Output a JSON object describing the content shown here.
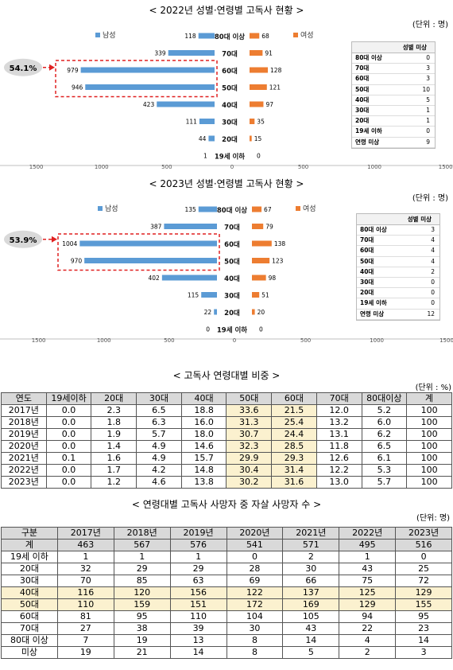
{
  "charts": [
    {
      "title": "< 2022년 성별·연령별 고독사 현황 >",
      "unit": "(단위 : 명)",
      "legend_male": "남성",
      "legend_female": "여성",
      "share_label": "54.1%",
      "missing_title": "성별 미상",
      "missing": [
        {
          "label": "80대 이상",
          "value": "0"
        },
        {
          "label": "70대",
          "value": "3"
        },
        {
          "label": "60대",
          "value": "3"
        },
        {
          "label": "50대",
          "value": "10"
        },
        {
          "label": "40대",
          "value": "5"
        },
        {
          "label": "30대",
          "value": "1"
        },
        {
          "label": "20대",
          "value": "1"
        },
        {
          "label": "19세 이하",
          "value": "0"
        },
        {
          "label": "연령 미상",
          "value": "9"
        }
      ]
    },
    {
      "title": "< 2023년 성별·연령별 고독사 현황 >",
      "unit": "(단위 : 명)",
      "legend_male": "남성",
      "legend_female": "여성",
      "share_label": "53.9%",
      "missing_title": "성별 미상",
      "missing": [
        {
          "label": "80대 이상",
          "value": "3"
        },
        {
          "label": "70대",
          "value": "4"
        },
        {
          "label": "60대",
          "value": "4"
        },
        {
          "label": "50대",
          "value": "4"
        },
        {
          "label": "40대",
          "value": "2"
        },
        {
          "label": "30대",
          "value": "0"
        },
        {
          "label": "20대",
          "value": "0"
        },
        {
          "label": "19세 이하",
          "value": "0"
        },
        {
          "label": "연령 미상",
          "value": "12"
        }
      ]
    }
  ],
  "chart_data": [
    {
      "type": "bar",
      "title": "< 2022년 성별·연령별 고독사 현황 >",
      "categories": [
        "80대 이상",
        "70대",
        "60대",
        "50대",
        "40대",
        "30대",
        "20대",
        "19세 이하"
      ],
      "series": [
        {
          "name": "남성",
          "values": [
            118,
            339,
            979,
            946,
            423,
            111,
            44,
            1
          ]
        },
        {
          "name": "여성",
          "values": [
            68,
            91,
            128,
            121,
            97,
            35,
            15,
            0
          ]
        }
      ],
      "xlim": [
        -1500,
        1500
      ],
      "x_ticks": [
        "1500",
        "1000",
        "500",
        "0",
        "500",
        "1000",
        "1500"
      ],
      "legend": "top",
      "colors": {
        "male": "#5b9bd5",
        "female": "#ed7d31",
        "highlight": "#e02020"
      }
    },
    {
      "type": "bar",
      "title": "< 2023년 성별·연령별 고독사 현황 >",
      "categories": [
        "80대 이상",
        "70대",
        "60대",
        "50대",
        "40대",
        "30대",
        "20대",
        "19세 이하"
      ],
      "series": [
        {
          "name": "남성",
          "values": [
            135,
            387,
            1004,
            970,
            402,
            115,
            22,
            0
          ]
        },
        {
          "name": "여성",
          "values": [
            67,
            79,
            138,
            123,
            98,
            51,
            20,
            0
          ]
        }
      ],
      "xlim": [
        -1500,
        1500
      ],
      "x_ticks": [
        "1500",
        "1000",
        "500",
        "0",
        "500",
        "1000",
        "1500"
      ],
      "legend": "top",
      "colors": {
        "male": "#5b9bd5",
        "female": "#ed7d31",
        "highlight": "#e02020"
      }
    },
    {
      "type": "table",
      "title": "< 고독사 연령대별 비중 >",
      "unit": "(단위 : %)",
      "headers": [
        "연도",
        "19세이하",
        "20대",
        "30대",
        "40대",
        "50대",
        "60대",
        "70대",
        "80대이상",
        "계"
      ],
      "rows": [
        [
          "2017년",
          "0.0",
          "2.3",
          "6.5",
          "18.8",
          "33.6",
          "21.5",
          "12.0",
          "5.2",
          "100"
        ],
        [
          "2018년",
          "0.0",
          "1.8",
          "6.3",
          "16.0",
          "31.3",
          "25.4",
          "13.2",
          "6.0",
          "100"
        ],
        [
          "2019년",
          "0.0",
          "1.9",
          "5.7",
          "18.0",
          "30.7",
          "24.4",
          "13.1",
          "6.2",
          "100"
        ],
        [
          "2020년",
          "0.0",
          "1.4",
          "4.9",
          "14.6",
          "32.3",
          "28.5",
          "11.8",
          "6.5",
          "100"
        ],
        [
          "2021년",
          "0.1",
          "1.6",
          "4.9",
          "15.7",
          "29.9",
          "29.3",
          "12.6",
          "6.1",
          "100"
        ],
        [
          "2022년",
          "0.0",
          "1.7",
          "4.2",
          "14.8",
          "30.4",
          "31.4",
          "12.2",
          "5.3",
          "100"
        ],
        [
          "2023년",
          "0.0",
          "1.2",
          "4.6",
          "13.8",
          "30.2",
          "31.6",
          "13.0",
          "5.7",
          "100"
        ]
      ]
    },
    {
      "type": "table",
      "title": "< 연령대별 고독사 사망자 중 자살 사망자 수 >",
      "unit": "(단위: 명)",
      "headers": [
        "구분",
        "2017년",
        "2018년",
        "2019년",
        "2020년",
        "2021년",
        "2022년",
        "2023년"
      ],
      "rows": [
        [
          "계",
          "463",
          "567",
          "576",
          "541",
          "571",
          "495",
          "516"
        ],
        [
          "19세 이하",
          "1",
          "1",
          "1",
          "0",
          "2",
          "1",
          "0"
        ],
        [
          "20대",
          "32",
          "29",
          "29",
          "28",
          "30",
          "43",
          "25"
        ],
        [
          "30대",
          "70",
          "85",
          "63",
          "69",
          "66",
          "75",
          "72"
        ],
        [
          "40대",
          "116",
          "120",
          "156",
          "122",
          "137",
          "125",
          "129"
        ],
        [
          "50대",
          "110",
          "159",
          "151",
          "172",
          "169",
          "129",
          "155"
        ],
        [
          "60대",
          "81",
          "95",
          "110",
          "104",
          "105",
          "94",
          "95"
        ],
        [
          "70대",
          "27",
          "38",
          "39",
          "30",
          "43",
          "22",
          "23"
        ],
        [
          "80대 이상",
          "7",
          "19",
          "13",
          "8",
          "14",
          "4",
          "14"
        ],
        [
          "미상",
          "19",
          "21",
          "14",
          "8",
          "5",
          "2",
          "3"
        ]
      ]
    }
  ]
}
